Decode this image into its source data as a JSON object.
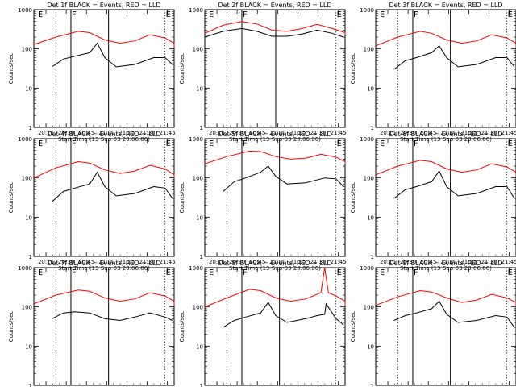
{
  "chart_data": {
    "type": "line",
    "layout": "3x3 grid",
    "yscale": "log",
    "ylim": [
      1,
      1000
    ],
    "yticks": [
      "1",
      "10",
      "100",
      "1000"
    ],
    "ylabel": "Counts/sec",
    "xlabel": "Start Time (13-Sep-03 20:06:00)",
    "xlim": [
      "20:06",
      "21:50"
    ],
    "xticks": [
      "20:15",
      "20:30",
      "20:45",
      "21:00",
      "21:15",
      "21:30",
      "21:45"
    ],
    "colors": {
      "events": "#000000",
      "lld": "#ff0000"
    },
    "panels": [
      {
        "title": "Det 1f BLACK = Events, RED = LLD",
        "events": [
          [
            20.35,
            35
          ],
          [
            20.5,
            55
          ],
          [
            20.65,
            65
          ],
          [
            20.85,
            80
          ],
          [
            20.95,
            140
          ],
          [
            21.05,
            60
          ],
          [
            21.2,
            35
          ],
          [
            21.45,
            40
          ],
          [
            21.7,
            60
          ],
          [
            21.85,
            60
          ],
          [
            21.95,
            40
          ]
        ],
        "lld": [
          [
            20.1,
            130
          ],
          [
            20.4,
            200
          ],
          [
            20.7,
            280
          ],
          [
            20.85,
            260
          ],
          [
            21.05,
            170
          ],
          [
            21.25,
            140
          ],
          [
            21.45,
            160
          ],
          [
            21.65,
            230
          ],
          [
            21.85,
            190
          ],
          [
            22.05,
            140
          ],
          [
            22.3,
            110
          ]
        ],
        "solid": [
          20.6,
          21.1
        ],
        "dotted": [
          20.4,
          21.85
        ],
        "flags": [
          {
            "text": "E",
            "x": 20.15
          },
          {
            "text": "F",
            "x": 20.6
          },
          {
            "text": "E",
            "x": 21.85
          }
        ]
      },
      {
        "title": "Det 2f BLACK = Events, RED = LLD",
        "events": [
          [
            20.1,
            200
          ],
          [
            20.35,
            280
          ],
          [
            20.6,
            330
          ],
          [
            20.8,
            280
          ],
          [
            21.0,
            210
          ],
          [
            21.2,
            210
          ],
          [
            21.4,
            240
          ],
          [
            21.6,
            300
          ],
          [
            21.8,
            250
          ],
          [
            21.95,
            200
          ]
        ],
        "lld": [
          [
            20.1,
            250
          ],
          [
            20.35,
            400
          ],
          [
            20.6,
            500
          ],
          [
            20.8,
            430
          ],
          [
            21.0,
            300
          ],
          [
            21.2,
            280
          ],
          [
            21.4,
            330
          ],
          [
            21.6,
            420
          ],
          [
            21.8,
            330
          ],
          [
            22.05,
            260
          ],
          [
            22.3,
            220
          ]
        ],
        "solid": [
          20.6,
          21.05
        ],
        "dotted": [
          20.4,
          21.85
        ],
        "flags": [
          {
            "text": "E",
            "x": 20.15
          },
          {
            "text": "F",
            "x": 20.6
          },
          {
            "text": "E",
            "x": 21.85
          }
        ]
      },
      {
        "title": "Det 3f BLACK = Events, RED = LLD",
        "events": [
          [
            20.35,
            30
          ],
          [
            20.5,
            50
          ],
          [
            20.65,
            60
          ],
          [
            20.85,
            80
          ],
          [
            20.95,
            120
          ],
          [
            21.05,
            60
          ],
          [
            21.2,
            35
          ],
          [
            21.45,
            40
          ],
          [
            21.7,
            60
          ],
          [
            21.85,
            60
          ],
          [
            21.95,
            35
          ]
        ],
        "lld": [
          [
            20.1,
            120
          ],
          [
            20.4,
            200
          ],
          [
            20.7,
            280
          ],
          [
            20.85,
            250
          ],
          [
            21.05,
            170
          ],
          [
            21.25,
            140
          ],
          [
            21.45,
            160
          ],
          [
            21.65,
            230
          ],
          [
            21.85,
            190
          ],
          [
            22.05,
            140
          ],
          [
            22.3,
            110
          ]
        ],
        "solid": [
          20.6,
          21.1
        ],
        "dotted": [
          20.4,
          21.85
        ],
        "flags": [
          {
            "text": "E",
            "x": 20.15
          },
          {
            "text": "F",
            "x": 20.6
          },
          {
            "text": "E",
            "x": 21.85
          }
        ]
      },
      {
        "title": "Det 4f BLACK = Events, RED = LLD",
        "events": [
          [
            20.35,
            25
          ],
          [
            20.5,
            45
          ],
          [
            20.65,
            55
          ],
          [
            20.85,
            70
          ],
          [
            20.95,
            140
          ],
          [
            21.05,
            60
          ],
          [
            21.2,
            35
          ],
          [
            21.45,
            40
          ],
          [
            21.7,
            60
          ],
          [
            21.85,
            55
          ],
          [
            21.95,
            30
          ]
        ],
        "lld": [
          [
            20.1,
            100
          ],
          [
            20.4,
            180
          ],
          [
            20.7,
            260
          ],
          [
            20.85,
            240
          ],
          [
            21.05,
            160
          ],
          [
            21.25,
            130
          ],
          [
            21.45,
            150
          ],
          [
            21.65,
            210
          ],
          [
            21.85,
            170
          ],
          [
            22.05,
            120
          ],
          [
            22.3,
            100
          ]
        ],
        "solid": [
          20.6,
          21.1
        ],
        "dotted": [
          20.4,
          21.85
        ],
        "flags": [
          {
            "text": "E",
            "x": 20.15
          },
          {
            "text": "F",
            "x": 20.6
          },
          {
            "text": "E",
            "x": 21.85
          }
        ]
      },
      {
        "title": "Det 5f BLACK = Events, RED = LLD",
        "events": [
          [
            20.35,
            45
          ],
          [
            20.5,
            80
          ],
          [
            20.65,
            100
          ],
          [
            20.85,
            140
          ],
          [
            20.95,
            200
          ],
          [
            21.05,
            110
          ],
          [
            21.2,
            70
          ],
          [
            21.45,
            75
          ],
          [
            21.7,
            100
          ],
          [
            21.85,
            95
          ],
          [
            21.95,
            60
          ]
        ],
        "lld": [
          [
            20.1,
            230
          ],
          [
            20.4,
            350
          ],
          [
            20.7,
            480
          ],
          [
            20.85,
            470
          ],
          [
            21.05,
            350
          ],
          [
            21.25,
            300
          ],
          [
            21.45,
            320
          ],
          [
            21.65,
            400
          ],
          [
            21.85,
            340
          ],
          [
            22.05,
            260
          ],
          [
            22.3,
            230
          ]
        ],
        "solid": [
          20.6,
          21.1
        ],
        "dotted": [
          20.4,
          21.85
        ],
        "flags": [
          {
            "text": "E",
            "x": 20.15
          },
          {
            "text": "F",
            "x": 20.6
          },
          {
            "text": "E",
            "x": 21.85
          }
        ]
      },
      {
        "title": "Det 6f BLACK = Events, RED = LLD",
        "events": [
          [
            20.35,
            30
          ],
          [
            20.5,
            50
          ],
          [
            20.65,
            60
          ],
          [
            20.85,
            80
          ],
          [
            20.95,
            150
          ],
          [
            21.05,
            60
          ],
          [
            21.2,
            35
          ],
          [
            21.45,
            40
          ],
          [
            21.7,
            60
          ],
          [
            21.85,
            60
          ],
          [
            21.95,
            30
          ]
        ],
        "lld": [
          [
            20.1,
            120
          ],
          [
            20.4,
            200
          ],
          [
            20.7,
            280
          ],
          [
            20.85,
            260
          ],
          [
            21.05,
            170
          ],
          [
            21.25,
            140
          ],
          [
            21.45,
            160
          ],
          [
            21.65,
            230
          ],
          [
            21.85,
            190
          ],
          [
            22.05,
            140
          ],
          [
            22.3,
            110
          ]
        ],
        "solid": [
          20.6,
          21.1
        ],
        "dotted": [
          20.4,
          21.85
        ],
        "flags": [
          {
            "text": "E",
            "x": 20.15
          },
          {
            "text": "F",
            "x": 20.6
          },
          {
            "text": "E",
            "x": 21.85
          }
        ]
      },
      {
        "title": "Det 7f BLACK = Events, RED = LLD",
        "events": [
          [
            20.35,
            50
          ],
          [
            20.5,
            70
          ],
          [
            20.65,
            75
          ],
          [
            20.85,
            70
          ],
          [
            21.05,
            50
          ],
          [
            21.25,
            45
          ],
          [
            21.45,
            55
          ],
          [
            21.65,
            70
          ],
          [
            21.85,
            55
          ],
          [
            21.95,
            45
          ]
        ],
        "lld": [
          [
            20.1,
            120
          ],
          [
            20.4,
            200
          ],
          [
            20.7,
            270
          ],
          [
            20.85,
            250
          ],
          [
            21.05,
            170
          ],
          [
            21.25,
            140
          ],
          [
            21.45,
            160
          ],
          [
            21.65,
            230
          ],
          [
            21.85,
            190
          ],
          [
            22.05,
            140
          ],
          [
            22.3,
            110
          ]
        ],
        "solid": [
          20.6,
          21.1
        ],
        "dotted": [
          20.4,
          21.85
        ],
        "flags": [
          {
            "text": "E",
            "x": 20.15
          },
          {
            "text": "F",
            "x": 20.6
          },
          {
            "text": "E",
            "x": 21.85
          }
        ]
      },
      {
        "title": "Det 8f BLACK = Events, RED = LLD",
        "events": [
          [
            20.35,
            30
          ],
          [
            20.5,
            45
          ],
          [
            20.65,
            55
          ],
          [
            20.85,
            70
          ],
          [
            20.95,
            130
          ],
          [
            21.05,
            60
          ],
          [
            21.2,
            40
          ],
          [
            21.45,
            50
          ],
          [
            21.6,
            60
          ],
          [
            21.7,
            65
          ],
          [
            21.72,
            120
          ],
          [
            21.85,
            50
          ],
          [
            21.95,
            35
          ]
        ],
        "lld": [
          [
            20.1,
            100
          ],
          [
            20.4,
            170
          ],
          [
            20.7,
            280
          ],
          [
            20.85,
            260
          ],
          [
            21.05,
            170
          ],
          [
            21.25,
            140
          ],
          [
            21.45,
            160
          ],
          [
            21.65,
            230
          ],
          [
            21.7,
            1000
          ],
          [
            21.75,
            230
          ],
          [
            21.85,
            190
          ],
          [
            22.05,
            140
          ],
          [
            22.3,
            110
          ]
        ],
        "solid": [
          20.6,
          21.1
        ],
        "dotted": [
          20.4,
          21.85
        ],
        "flags": [
          {
            "text": "E",
            "x": 20.15
          },
          {
            "text": "F",
            "x": 20.6
          },
          {
            "text": "E",
            "x": 21.85
          }
        ]
      },
      {
        "title": "Det 9f BLACK = Events, RED = LLD",
        "events": [
          [
            20.35,
            45
          ],
          [
            20.5,
            60
          ],
          [
            20.65,
            70
          ],
          [
            20.85,
            90
          ],
          [
            20.95,
            140
          ],
          [
            21.05,
            65
          ],
          [
            21.2,
            40
          ],
          [
            21.45,
            45
          ],
          [
            21.7,
            60
          ],
          [
            21.85,
            55
          ],
          [
            21.95,
            30
          ]
        ],
        "lld": [
          [
            20.1,
            110
          ],
          [
            20.4,
            180
          ],
          [
            20.7,
            260
          ],
          [
            20.85,
            240
          ],
          [
            21.05,
            170
          ],
          [
            21.25,
            130
          ],
          [
            21.45,
            150
          ],
          [
            21.65,
            210
          ],
          [
            21.85,
            170
          ],
          [
            22.05,
            130
          ],
          [
            22.3,
            100
          ]
        ],
        "solid": [
          20.6,
          21.1
        ],
        "dotted": [
          20.4,
          21.85
        ],
        "flags": [
          {
            "text": "E",
            "x": 20.15
          },
          {
            "text": "F",
            "x": 20.6
          },
          {
            "text": "E",
            "x": 21.85
          }
        ]
      }
    ]
  }
}
